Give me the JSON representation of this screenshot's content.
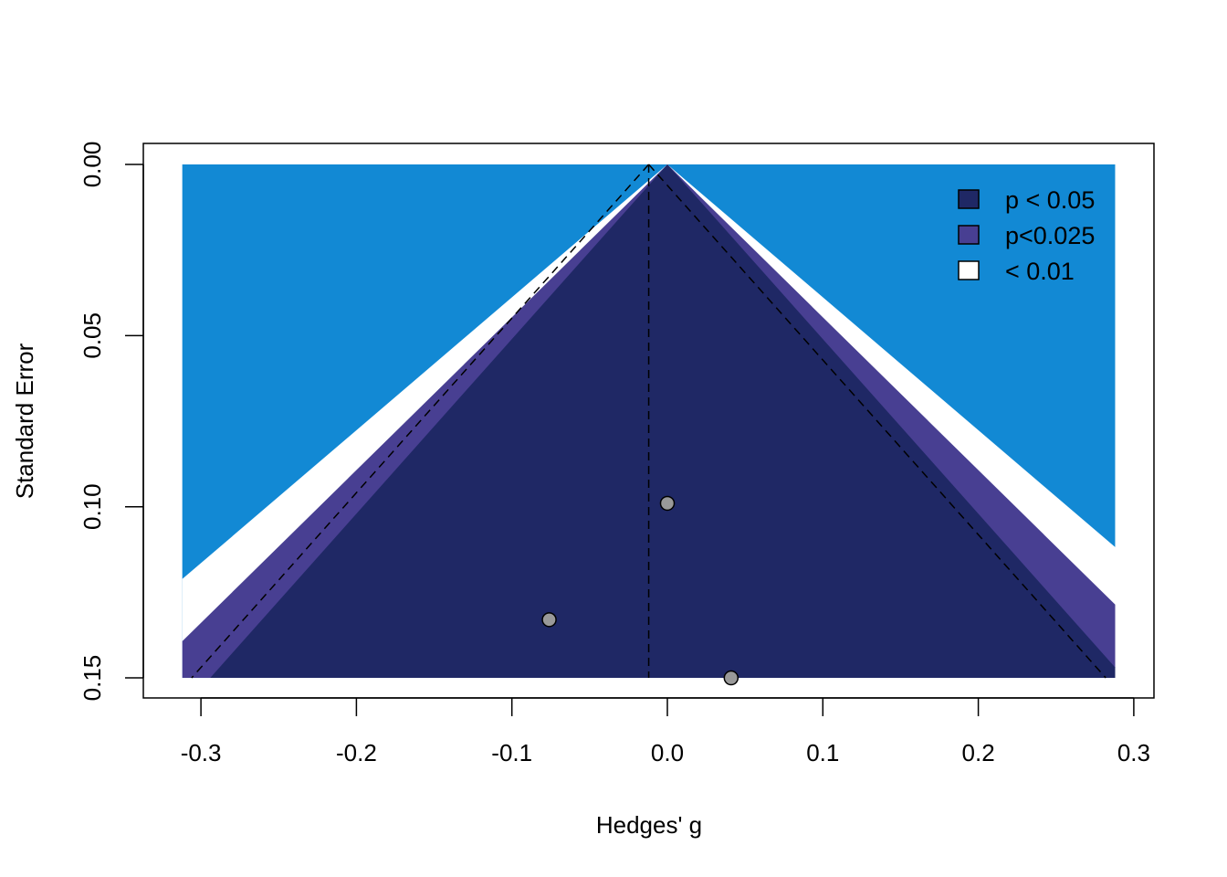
{
  "chart_data": {
    "type": "scatter",
    "subtype": "contour-enhanced funnel plot",
    "title": "",
    "xlabel": "Hedges' g",
    "ylabel": "Standard Error",
    "xlim": [
      -0.3,
      0.3
    ],
    "ylim": [
      0.15,
      0.0
    ],
    "y_reversed": true,
    "x_ticks": [
      -0.3,
      -0.2,
      -0.1,
      0.0,
      0.1,
      0.2,
      0.3
    ],
    "x_tick_labels": [
      "-0.3",
      "-0.2",
      "-0.1",
      "0.0",
      "0.1",
      "0.2",
      "0.3"
    ],
    "y_ticks": [
      0.0,
      0.05,
      0.1,
      0.15
    ],
    "y_tick_labels": [
      "0.00",
      "0.05",
      "0.10",
      "0.15"
    ],
    "shaded_x_range": [
      -0.312,
      0.288
    ],
    "se_max": 0.15,
    "points": [
      {
        "x": 0.0,
        "y": 0.099
      },
      {
        "x": -0.076,
        "y": 0.133
      },
      {
        "x": 0.041,
        "y": 0.15
      }
    ],
    "summary_estimate": -0.012,
    "contours": [
      {
        "label": "p < 0.05",
        "z": 1.96,
        "color": "#1f2865"
      },
      {
        "label": "p<0.025",
        "z": 2.24,
        "color": "#483f92"
      },
      {
        "label": "< 0.01",
        "z": 2.576,
        "color": "#ffffff"
      }
    ],
    "background_color": "#1289d4",
    "point_color": "#999999",
    "legend_position": "top-right",
    "grid": false
  }
}
